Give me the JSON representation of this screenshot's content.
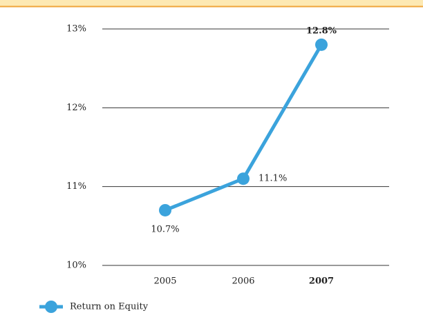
{
  "chart_data": {
    "type": "line",
    "categories": [
      "2005",
      "2006",
      "2007"
    ],
    "series": [
      {
        "name": "Return on Equity",
        "color": "#3ba3dc",
        "values": [
          10.7,
          11.1,
          12.8
        ],
        "value_labels": [
          "10.7%",
          "11.1%",
          "12.8%"
        ]
      }
    ],
    "ylim": [
      10,
      13
    ],
    "yticks": [
      {
        "value": 10,
        "label": "10%"
      },
      {
        "value": 11,
        "label": "11%"
      },
      {
        "value": 12,
        "label": "12%"
      },
      {
        "value": 13,
        "label": "13%"
      }
    ],
    "grid": true
  }
}
